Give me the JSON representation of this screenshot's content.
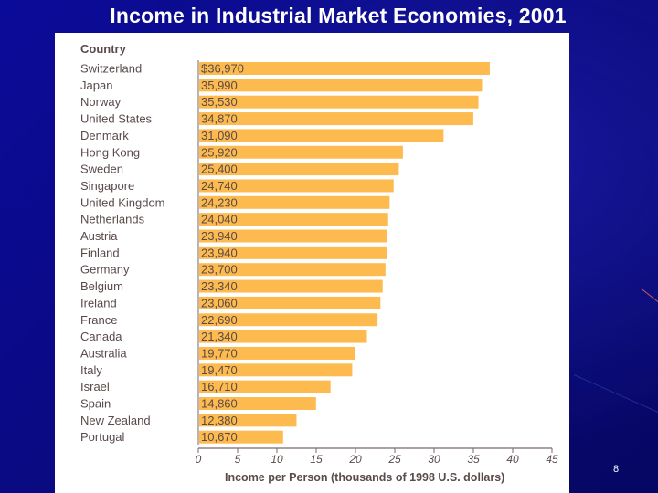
{
  "slide": {
    "title": "Income in Industrial Market Economies, 2001",
    "page_number": "8"
  },
  "chart_data": {
    "type": "bar",
    "orientation": "horizontal",
    "title": "",
    "column_header": "Country",
    "xlabel": "Income per Person (thousands of 1998 U.S. dollars)",
    "xlim": [
      0,
      45
    ],
    "x_ticks": [
      0,
      5,
      10,
      15,
      20,
      25,
      30,
      35,
      40,
      45
    ],
    "grid": false,
    "bar_color": "#fdbb4f",
    "categories": [
      "Switzerland",
      "Japan",
      "Norway",
      "United States",
      "Denmark",
      "Hong Kong",
      "Sweden",
      "Singapore",
      "United Kingdom",
      "Netherlands",
      "Austria",
      "Finland",
      "Germany",
      "Belgium",
      "Ireland",
      "France",
      "Canada",
      "Australia",
      "Italy",
      "Israel",
      "Spain",
      "New Zealand",
      "Portugal"
    ],
    "values": [
      36970,
      35990,
      35530,
      34870,
      31090,
      25920,
      25400,
      24740,
      24230,
      24040,
      23940,
      23940,
      23700,
      23340,
      23060,
      22690,
      21340,
      19770,
      19470,
      16710,
      14860,
      12380,
      10670
    ],
    "value_labels": [
      "$36,970",
      "35,990",
      "35,530",
      "34,870",
      "31,090",
      "25,920",
      "25,400",
      "24,740",
      "24,230",
      "24,040",
      "23,940",
      "23,940",
      "23,700",
      "23,340",
      "23,060",
      "22,690",
      "21,340",
      "19,770",
      "19,470",
      "16,710",
      "14,860",
      "12,380",
      "10,670"
    ]
  }
}
